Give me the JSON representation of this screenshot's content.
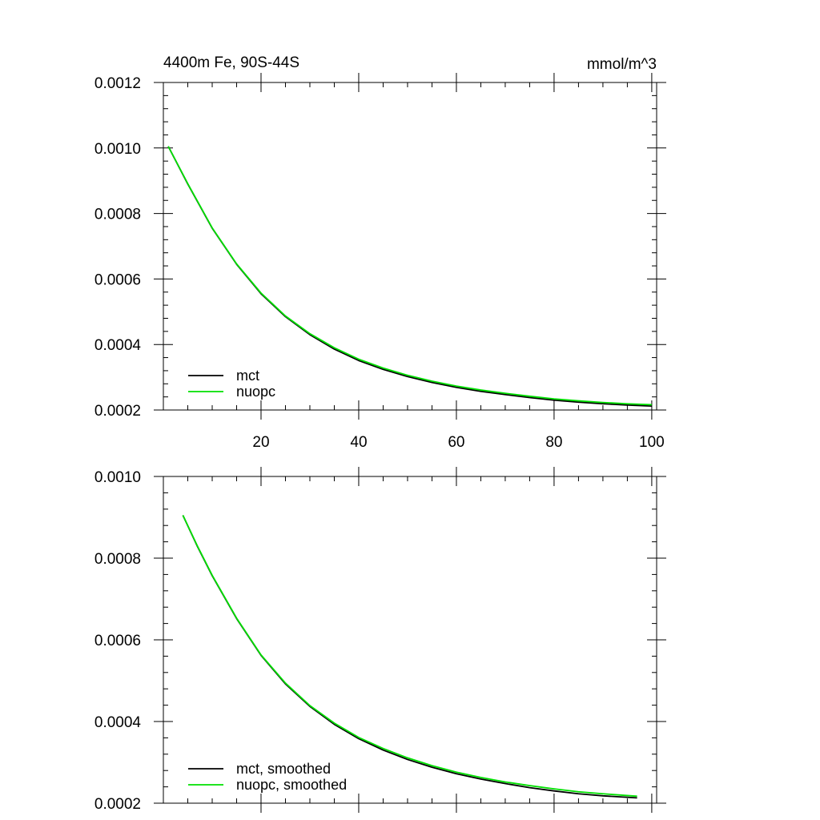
{
  "figure": {
    "left_title": "4400m Fe, 90S-44S",
    "right_title": "mmol/m^3"
  },
  "chart_data": [
    {
      "type": "line",
      "title": "",
      "xlabel": "",
      "ylabel": "",
      "xlim": [
        0,
        101
      ],
      "ylim": [
        0.0002,
        0.0012
      ],
      "xticks": [
        20,
        40,
        60,
        80,
        100
      ],
      "xtick_labels": [
        "20",
        "40",
        "60",
        "80",
        "100"
      ],
      "yticks": [
        0.0002,
        0.0004,
        0.0006,
        0.0008,
        0.001,
        0.0012
      ],
      "ytick_labels": [
        "0.0002",
        "0.0004",
        "0.0006",
        "0.0008",
        "0.0010",
        "0.0012"
      ],
      "legend_position": "bottom-left",
      "grid": false,
      "x": [
        1,
        5,
        10,
        15,
        20,
        25,
        30,
        35,
        40,
        45,
        50,
        55,
        60,
        65,
        70,
        75,
        80,
        85,
        90,
        95,
        100
      ],
      "series": [
        {
          "name": "mct",
          "color": "#000000",
          "values": [
            0.001005,
            0.00089,
            0.000755,
            0.000645,
            0.000555,
            0.000485,
            0.00043,
            0.000386,
            0.000351,
            0.000324,
            0.000302,
            0.000284,
            0.000269,
            0.000257,
            0.000247,
            0.000238,
            0.00023,
            0.000224,
            0.000219,
            0.000215,
            0.000212
          ]
        },
        {
          "name": "nuopc",
          "color": "#00e000",
          "values": [
            0.001005,
            0.000891,
            0.000756,
            0.000646,
            0.000557,
            0.000487,
            0.000433,
            0.00039,
            0.000355,
            0.000328,
            0.000306,
            0.000288,
            0.000273,
            0.000261,
            0.000251,
            0.000242,
            0.000234,
            0.000228,
            0.000223,
            0.000219,
            0.000216
          ]
        }
      ]
    },
    {
      "type": "line",
      "title": "",
      "xlabel": "",
      "ylabel": "",
      "xlim": [
        0,
        101
      ],
      "ylim": [
        0.0002,
        0.001
      ],
      "xticks": [
        20,
        40,
        60,
        80,
        100
      ],
      "xtick_labels": [],
      "yticks": [
        0.0002,
        0.0004,
        0.0006,
        0.0008,
        0.001
      ],
      "ytick_labels": [
        "0.0002",
        "0.0004",
        "0.0006",
        "0.0008",
        "0.0010"
      ],
      "legend_position": "bottom-left",
      "grid": false,
      "x": [
        4,
        7,
        10,
        15,
        20,
        25,
        30,
        35,
        40,
        45,
        50,
        55,
        60,
        65,
        70,
        75,
        80,
        85,
        90,
        97
      ],
      "series": [
        {
          "name": "mct, smoothed",
          "color": "#000000",
          "values": [
            0.000905,
            0.000828,
            0.000757,
            0.000652,
            0.000562,
            0.000492,
            0.000437,
            0.000393,
            0.000358,
            0.00033,
            0.000307,
            0.000288,
            0.000272,
            0.000259,
            0.000248,
            0.000238,
            0.00023,
            0.000223,
            0.000218,
            0.000213
          ]
        },
        {
          "name": "nuopc, smoothed",
          "color": "#00e000",
          "values": [
            0.000905,
            0.000829,
            0.000758,
            0.000653,
            0.000563,
            0.000494,
            0.000439,
            0.000396,
            0.000361,
            0.000334,
            0.000311,
            0.000292,
            0.000276,
            0.000263,
            0.000252,
            0.000243,
            0.000235,
            0.000228,
            0.000223,
            0.000217
          ]
        }
      ]
    }
  ]
}
